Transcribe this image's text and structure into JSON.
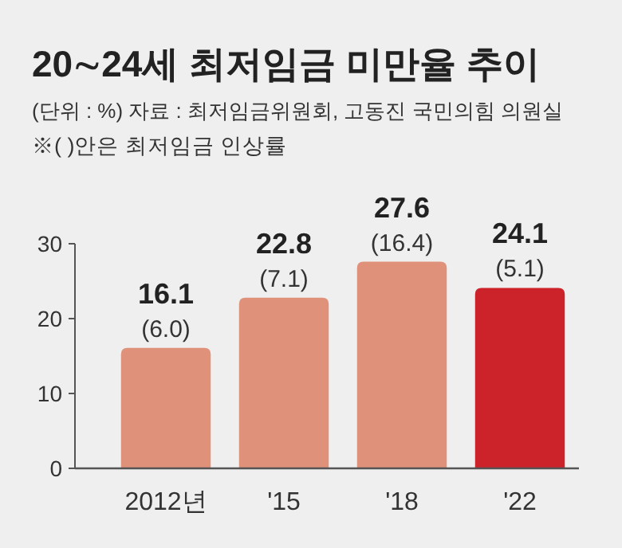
{
  "chart_data": {
    "type": "bar",
    "title": "20∼24세 최저임금 미만율 추이",
    "subtitle": "(단위 : %)  자료 : 최저임금위원회, 고동진 국민의힘 의원실",
    "annotations": [
      "※( )안은 최저임금 인상률",
      {
        "text": "(6.0)",
        "x": "2012년",
        "y": 16.1
      },
      {
        "text": "(7.1)",
        "x": "'15",
        "y": 22.8
      },
      {
        "text": "(16.4)",
        "x": "'18",
        "y": 27.6
      },
      {
        "text": "(5.1)",
        "x": "'22",
        "y": 24.1
      }
    ],
    "categories": [
      "2012년",
      "'15",
      "'18",
      "'22"
    ],
    "values": [
      16.1,
      22.8,
      27.6,
      24.1
    ],
    "colors": [
      "#e0917a",
      "#e0917a",
      "#e0917a",
      "#cc2229"
    ],
    "ylim": [
      0,
      30
    ],
    "yticks": [
      0,
      10,
      20,
      30
    ],
    "data_labels": true,
    "grid": false
  }
}
